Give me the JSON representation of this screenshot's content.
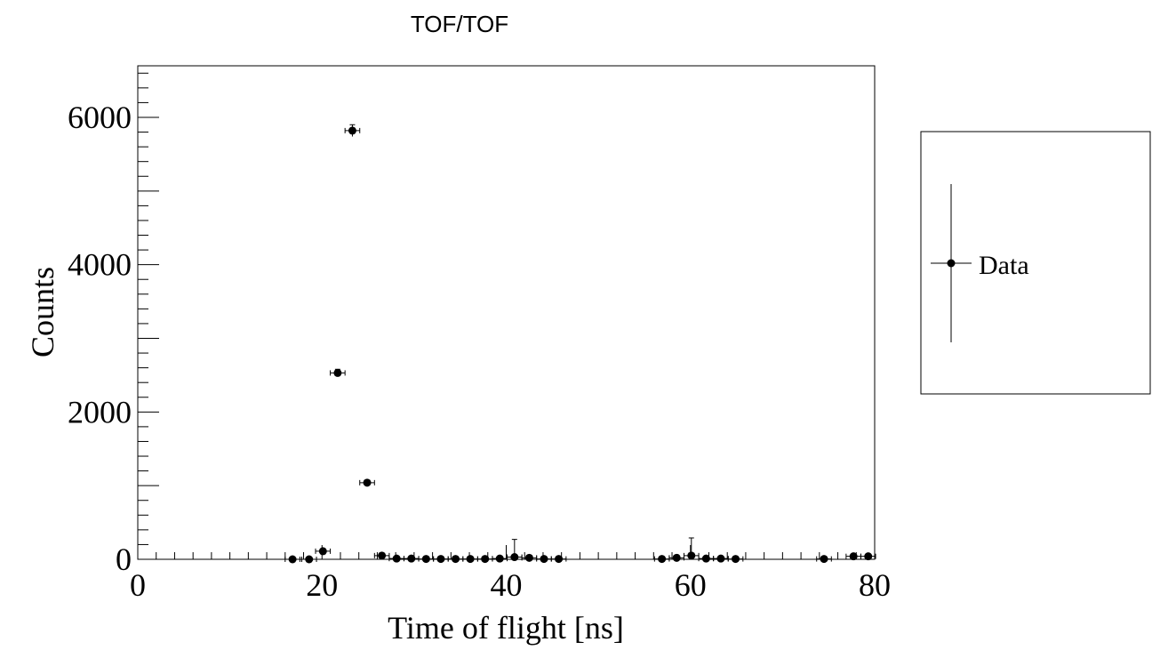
{
  "chart_data": {
    "type": "scatter",
    "title": "TOF/TOF",
    "xlabel": "Time of flight [ns]",
    "ylabel": "Counts",
    "xlim": [
      0,
      80
    ],
    "ylim": [
      0,
      6700
    ],
    "xticks": [
      0,
      20,
      40,
      60,
      80
    ],
    "yticks": [
      0,
      2000,
      4000,
      6000
    ],
    "grid": false,
    "legend_position": "right",
    "series": [
      {
        "name": "Data",
        "marker": "filled-circle",
        "error_bars": true,
        "x": [
          16.8,
          18.6,
          20.1,
          21.7,
          23.3,
          24.9,
          26.5,
          28.1,
          29.7,
          31.3,
          32.9,
          34.5,
          36.1,
          37.7,
          39.3,
          40.9,
          42.5,
          44.1,
          45.7,
          56.9,
          58.5,
          60.1,
          61.7,
          63.3,
          64.9,
          74.5,
          77.7,
          79.3
        ],
        "y": [
          0,
          0,
          110,
          2530,
          5820,
          1040,
          50,
          10,
          10,
          5,
          5,
          5,
          5,
          5,
          10,
          30,
          20,
          5,
          5,
          5,
          20,
          50,
          10,
          10,
          5,
          5,
          40,
          40
        ],
        "xerr": [
          0.8,
          0.8,
          0.8,
          0.8,
          0.8,
          0.8,
          0.8,
          0.8,
          0.8,
          0.8,
          0.8,
          0.8,
          0.8,
          0.8,
          0.8,
          0.8,
          0.8,
          0.8,
          0.8,
          0.8,
          0.8,
          0.8,
          0.8,
          0.8,
          0.8,
          0.8,
          0.8,
          0.8
        ],
        "yerr": [
          0,
          0,
          30,
          50,
          80,
          32,
          0,
          0,
          0,
          0,
          0,
          0,
          0,
          0,
          0,
          240,
          0,
          0,
          0,
          0,
          0,
          240,
          0,
          0,
          0,
          0,
          0,
          0
        ]
      }
    ]
  },
  "colors": {
    "marker": "#000000",
    "axis": "#000000",
    "background": "#ffffff"
  }
}
